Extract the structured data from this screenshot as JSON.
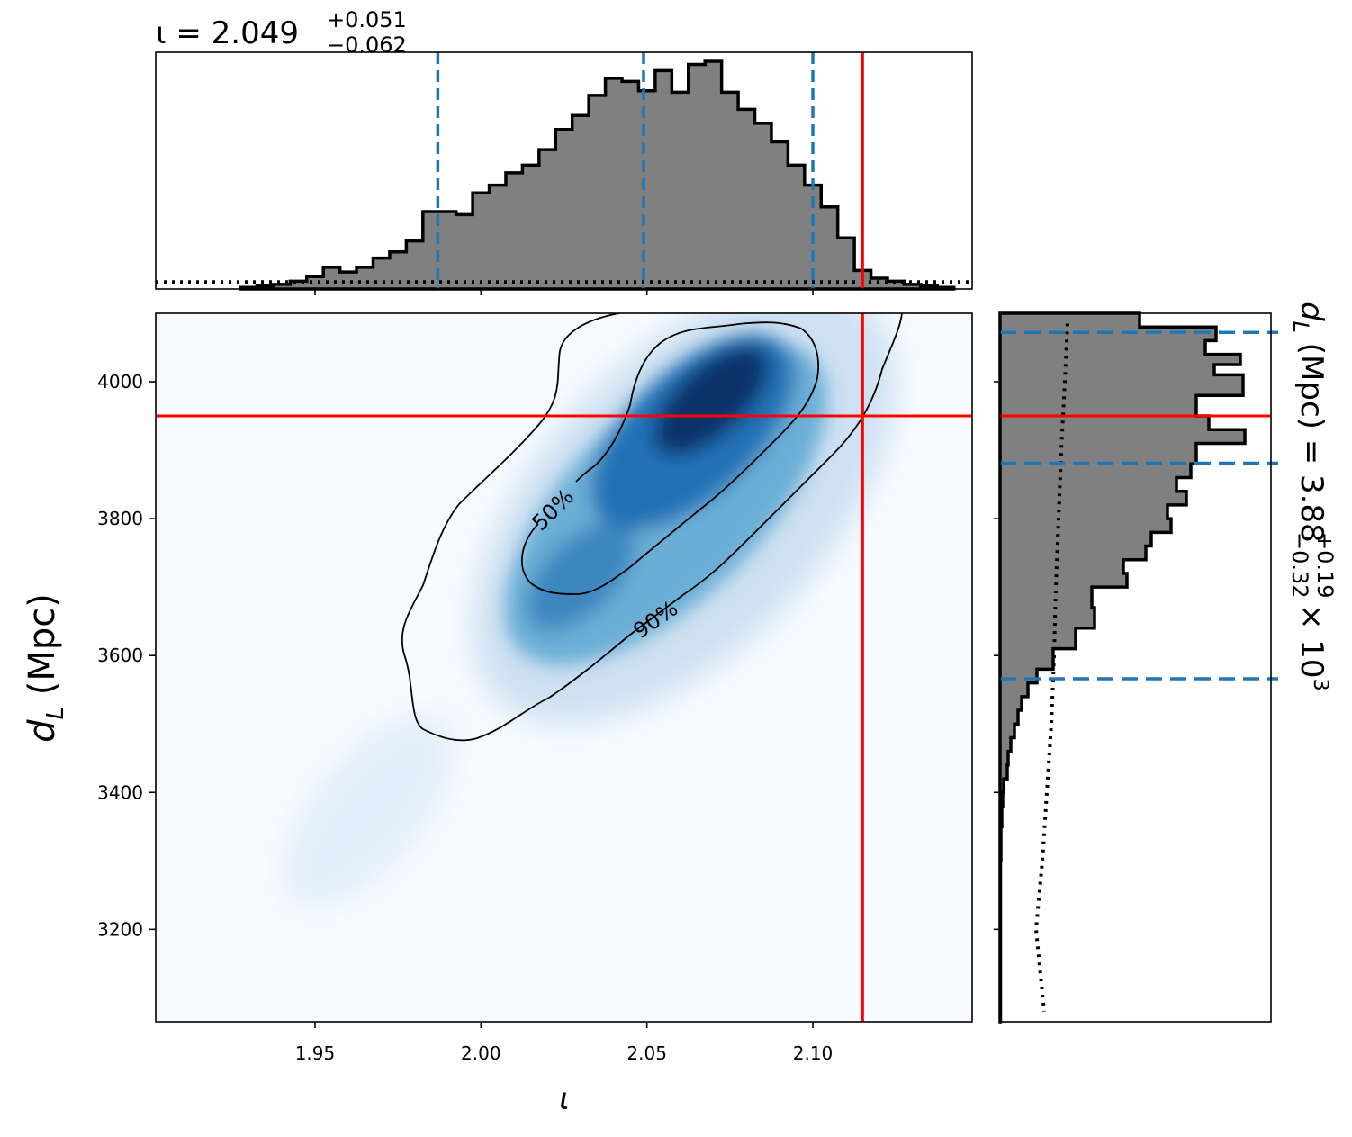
{
  "chart_data": [
    {
      "panel": "top-marginal",
      "type": "histogram",
      "title": {
        "param": "ι",
        "median": "2.049",
        "plus": "+0.051",
        "minus": "−0.062"
      },
      "xlim": [
        1.902,
        2.148
      ],
      "bins_x": [
        1.93,
        1.935,
        1.94,
        1.945,
        1.95,
        1.955,
        1.96,
        1.965,
        1.97,
        1.975,
        1.98,
        1.985,
        1.99,
        1.995,
        2.0,
        2.005,
        2.01,
        2.015,
        2.02,
        2.025,
        2.03,
        2.035,
        2.04,
        2.045,
        2.05,
        2.055,
        2.06,
        2.065,
        2.07,
        2.075,
        2.08,
        2.085,
        2.09,
        2.095,
        2.1,
        2.105,
        2.11,
        2.115,
        2.12,
        2.125,
        2.13,
        2.135,
        2.14
      ],
      "counts": [
        0.01,
        0.02,
        0.03,
        0.05,
        0.08,
        0.14,
        0.11,
        0.14,
        0.2,
        0.24,
        0.31,
        0.5,
        0.5,
        0.48,
        0.62,
        0.67,
        0.75,
        0.8,
        0.9,
        1.03,
        1.12,
        1.25,
        1.36,
        1.34,
        1.28,
        1.41,
        1.27,
        1.45,
        1.47,
        1.27,
        1.16,
        1.07,
        0.95,
        0.8,
        0.67,
        0.53,
        0.33,
        0.12,
        0.07,
        0.05,
        0.03,
        0.02,
        0.01
      ],
      "count_max": 1.47,
      "prior_level": 0.045,
      "quantiles": [
        1.987,
        2.049,
        2.1
      ],
      "injection": 2.115,
      "colors": {
        "fill": "#808080",
        "edge": "#000000",
        "quantile": "#1f77b4",
        "injection": "#ff0000"
      }
    },
    {
      "panel": "joint-density",
      "type": "heatmap",
      "xlabel": "ι",
      "ylabel": {
        "symbol": "d",
        "sub": "L",
        "unit": "(Mpc)"
      },
      "xlim": [
        1.902,
        2.148
      ],
      "ylim": [
        3065,
        4100
      ],
      "x_ticks": [
        1.95,
        2.0,
        2.05,
        2.1
      ],
      "x_tick_labels": [
        "1.95",
        "2.00",
        "2.05",
        "2.10"
      ],
      "y_ticks": [
        3200,
        3400,
        3600,
        3800,
        4000
      ],
      "y_tick_labels": [
        "3200",
        "3400",
        "3600",
        "3800",
        "4000"
      ],
      "contour_labels": [
        "50%",
        "90%"
      ],
      "injection": {
        "x": 2.115,
        "y": 3950
      },
      "colormap": [
        "#f7fbff",
        "#deebf7",
        "#c6dbef",
        "#9ecae1",
        "#6baed6",
        "#4292c6",
        "#2171b5",
        "#08519c",
        "#08306b"
      ]
    },
    {
      "panel": "right-marginal",
      "type": "histogram",
      "orientation": "horizontal",
      "label": {
        "symbol": "d",
        "sub": "L",
        "unit": "(Mpc)",
        "median": "3.88",
        "plus": "+0.19",
        "minus": "−0.32",
        "scale": "× 10",
        "exp": "3"
      },
      "ylim": [
        3065,
        4100
      ],
      "quantiles": [
        3566,
        3881,
        4072
      ],
      "injection": 3950,
      "count_max": 1.0
    }
  ]
}
